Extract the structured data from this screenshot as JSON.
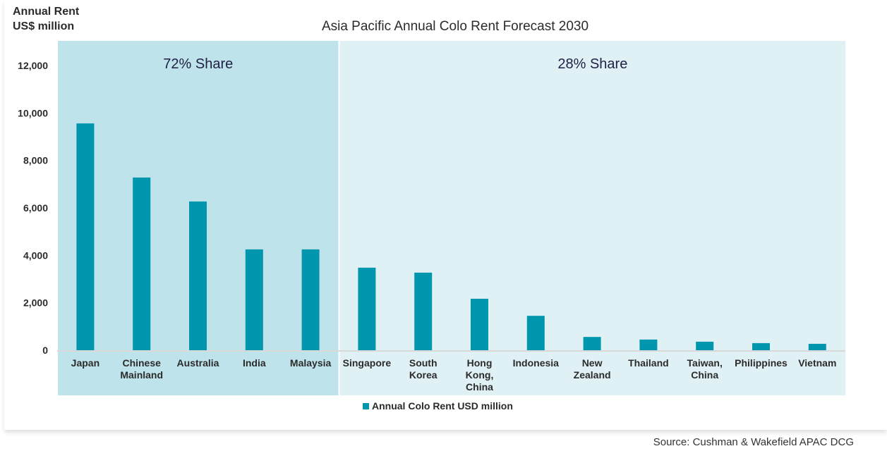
{
  "chart_data": {
    "type": "bar",
    "title": "Asia Pacific Annual Colo Rent Forecast 2030",
    "ylabel": [
      "Annual Rent",
      "US$ million"
    ],
    "xlabel": "",
    "ylim": [
      0,
      12000
    ],
    "yticks": [
      "0",
      "2,000",
      "4,000",
      "6,000",
      "8,000",
      "10,000",
      "12,000"
    ],
    "ytick_values": [
      0,
      2000,
      4000,
      6000,
      8000,
      10000,
      12000
    ],
    "grid": false,
    "legend_placement": "bottom",
    "categories": [
      [
        "Japan"
      ],
      [
        "Chinese",
        "Mainland"
      ],
      [
        "Australia"
      ],
      [
        "India"
      ],
      [
        "Malaysia"
      ],
      [
        "Singapore"
      ],
      [
        "South",
        "Korea"
      ],
      [
        "Hong",
        "Kong,",
        "China"
      ],
      [
        "Indonesia"
      ],
      [
        "New",
        "Zealand"
      ],
      [
        "Thailand"
      ],
      [
        "Taiwan,",
        "China"
      ],
      [
        "Philippines"
      ],
      [
        "Vietnam"
      ]
    ],
    "series": [
      {
        "name": "Annual Colo Rent USD million",
        "color": "#0096AE",
        "values": [
          9560,
          7280,
          6270,
          4250,
          4250,
          3480,
          3270,
          2170,
          1450,
          560,
          450,
          360,
          300,
          270
        ]
      }
    ],
    "regions": [
      {
        "label": "72% Share",
        "from_category": 0,
        "to_category": 4,
        "color": "#BFE3EA"
      },
      {
        "label": "28% Share",
        "from_category": 5,
        "to_category": 13,
        "color": "#E0F1F5"
      }
    ]
  },
  "source": "Source: Cushman & Wakefield APAC DCG"
}
